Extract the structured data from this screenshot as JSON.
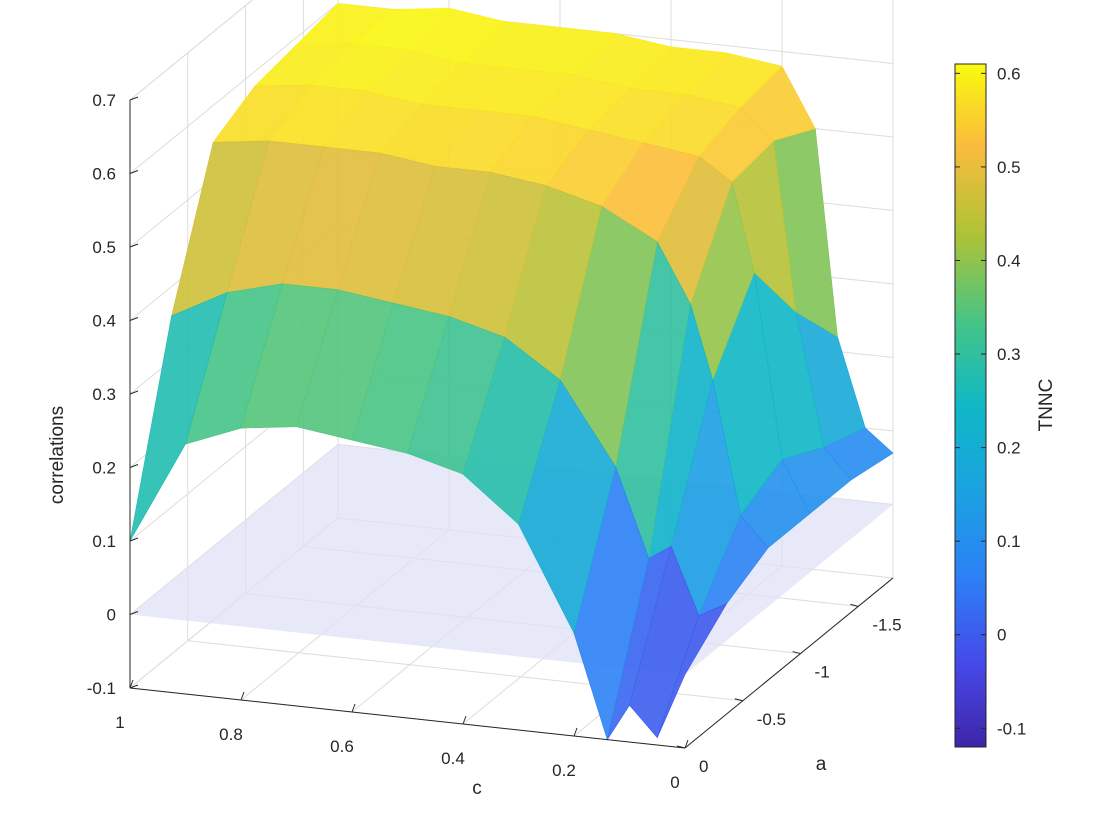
{
  "chart_data": {
    "type": "surface",
    "title": "",
    "xlabel": "c",
    "ylabel": "a",
    "zlabel": "correlations",
    "xlim": [
      0,
      1
    ],
    "ylim": [
      -1.8,
      0
    ],
    "zlim": [
      -0.1,
      0.7
    ],
    "x_ticks": [
      "1",
      "0.8",
      "0.6",
      "0.4",
      "0.2",
      "0"
    ],
    "y_ticks": [
      "0",
      "-0.5",
      "-1",
      "-1.5"
    ],
    "z_ticks": [
      "-0.1",
      "0",
      "0.1",
      "0.2",
      "0.3",
      "0.4",
      "0.5",
      "0.6",
      "0.7"
    ],
    "colorbar": {
      "label": "TNNC",
      "range": [
        -0.12,
        0.61
      ],
      "ticks": [
        "0.6",
        "0.5",
        "0.4",
        "0.3",
        "0.2",
        "0.1",
        "0",
        "-0.1"
      ],
      "colormap": "parula"
    },
    "reference_plane": {
      "z": 0,
      "color": "#dfe1f7"
    },
    "grid": true,
    "surface_profile": {
      "a_values": [
        0,
        -0.36,
        -0.72,
        -1.08,
        -1.44,
        -1.8
      ],
      "c_values": [
        1,
        0.9,
        0.8,
        0.7,
        0.6,
        0.5,
        0.4,
        0.3,
        0.2,
        0.14,
        0.1,
        0.05,
        0
      ],
      "z": [
        [
          0.1,
          0.36,
          0.55,
          0.58,
          0.59,
          0.6
        ],
        [
          0.24,
          0.4,
          0.56,
          0.59,
          0.6,
          0.6
        ],
        [
          0.27,
          0.42,
          0.56,
          0.59,
          0.6,
          0.61
        ],
        [
          0.28,
          0.42,
          0.56,
          0.58,
          0.59,
          0.6
        ],
        [
          0.27,
          0.41,
          0.55,
          0.58,
          0.59,
          0.6
        ],
        [
          0.26,
          0.4,
          0.55,
          0.58,
          0.59,
          0.6
        ],
        [
          0.24,
          0.38,
          0.54,
          0.57,
          0.58,
          0.59
        ],
        [
          0.18,
          0.33,
          0.52,
          0.56,
          0.58,
          0.59
        ],
        [
          0.04,
          0.22,
          0.48,
          0.55,
          0.57,
          0.58
        ],
        [
          -0.1,
          0.1,
          0.4,
          0.52,
          0.53,
          0.5
        ],
        [
          -0.05,
          0.12,
          0.3,
          0.4,
          0.3,
          0.22
        ],
        [
          -0.09,
          0.03,
          0.12,
          0.15,
          0.12,
          0.1
        ],
        [
          0.0,
          0.05,
          0.08,
          0.08,
          0.08,
          0.07
        ]
      ]
    }
  }
}
